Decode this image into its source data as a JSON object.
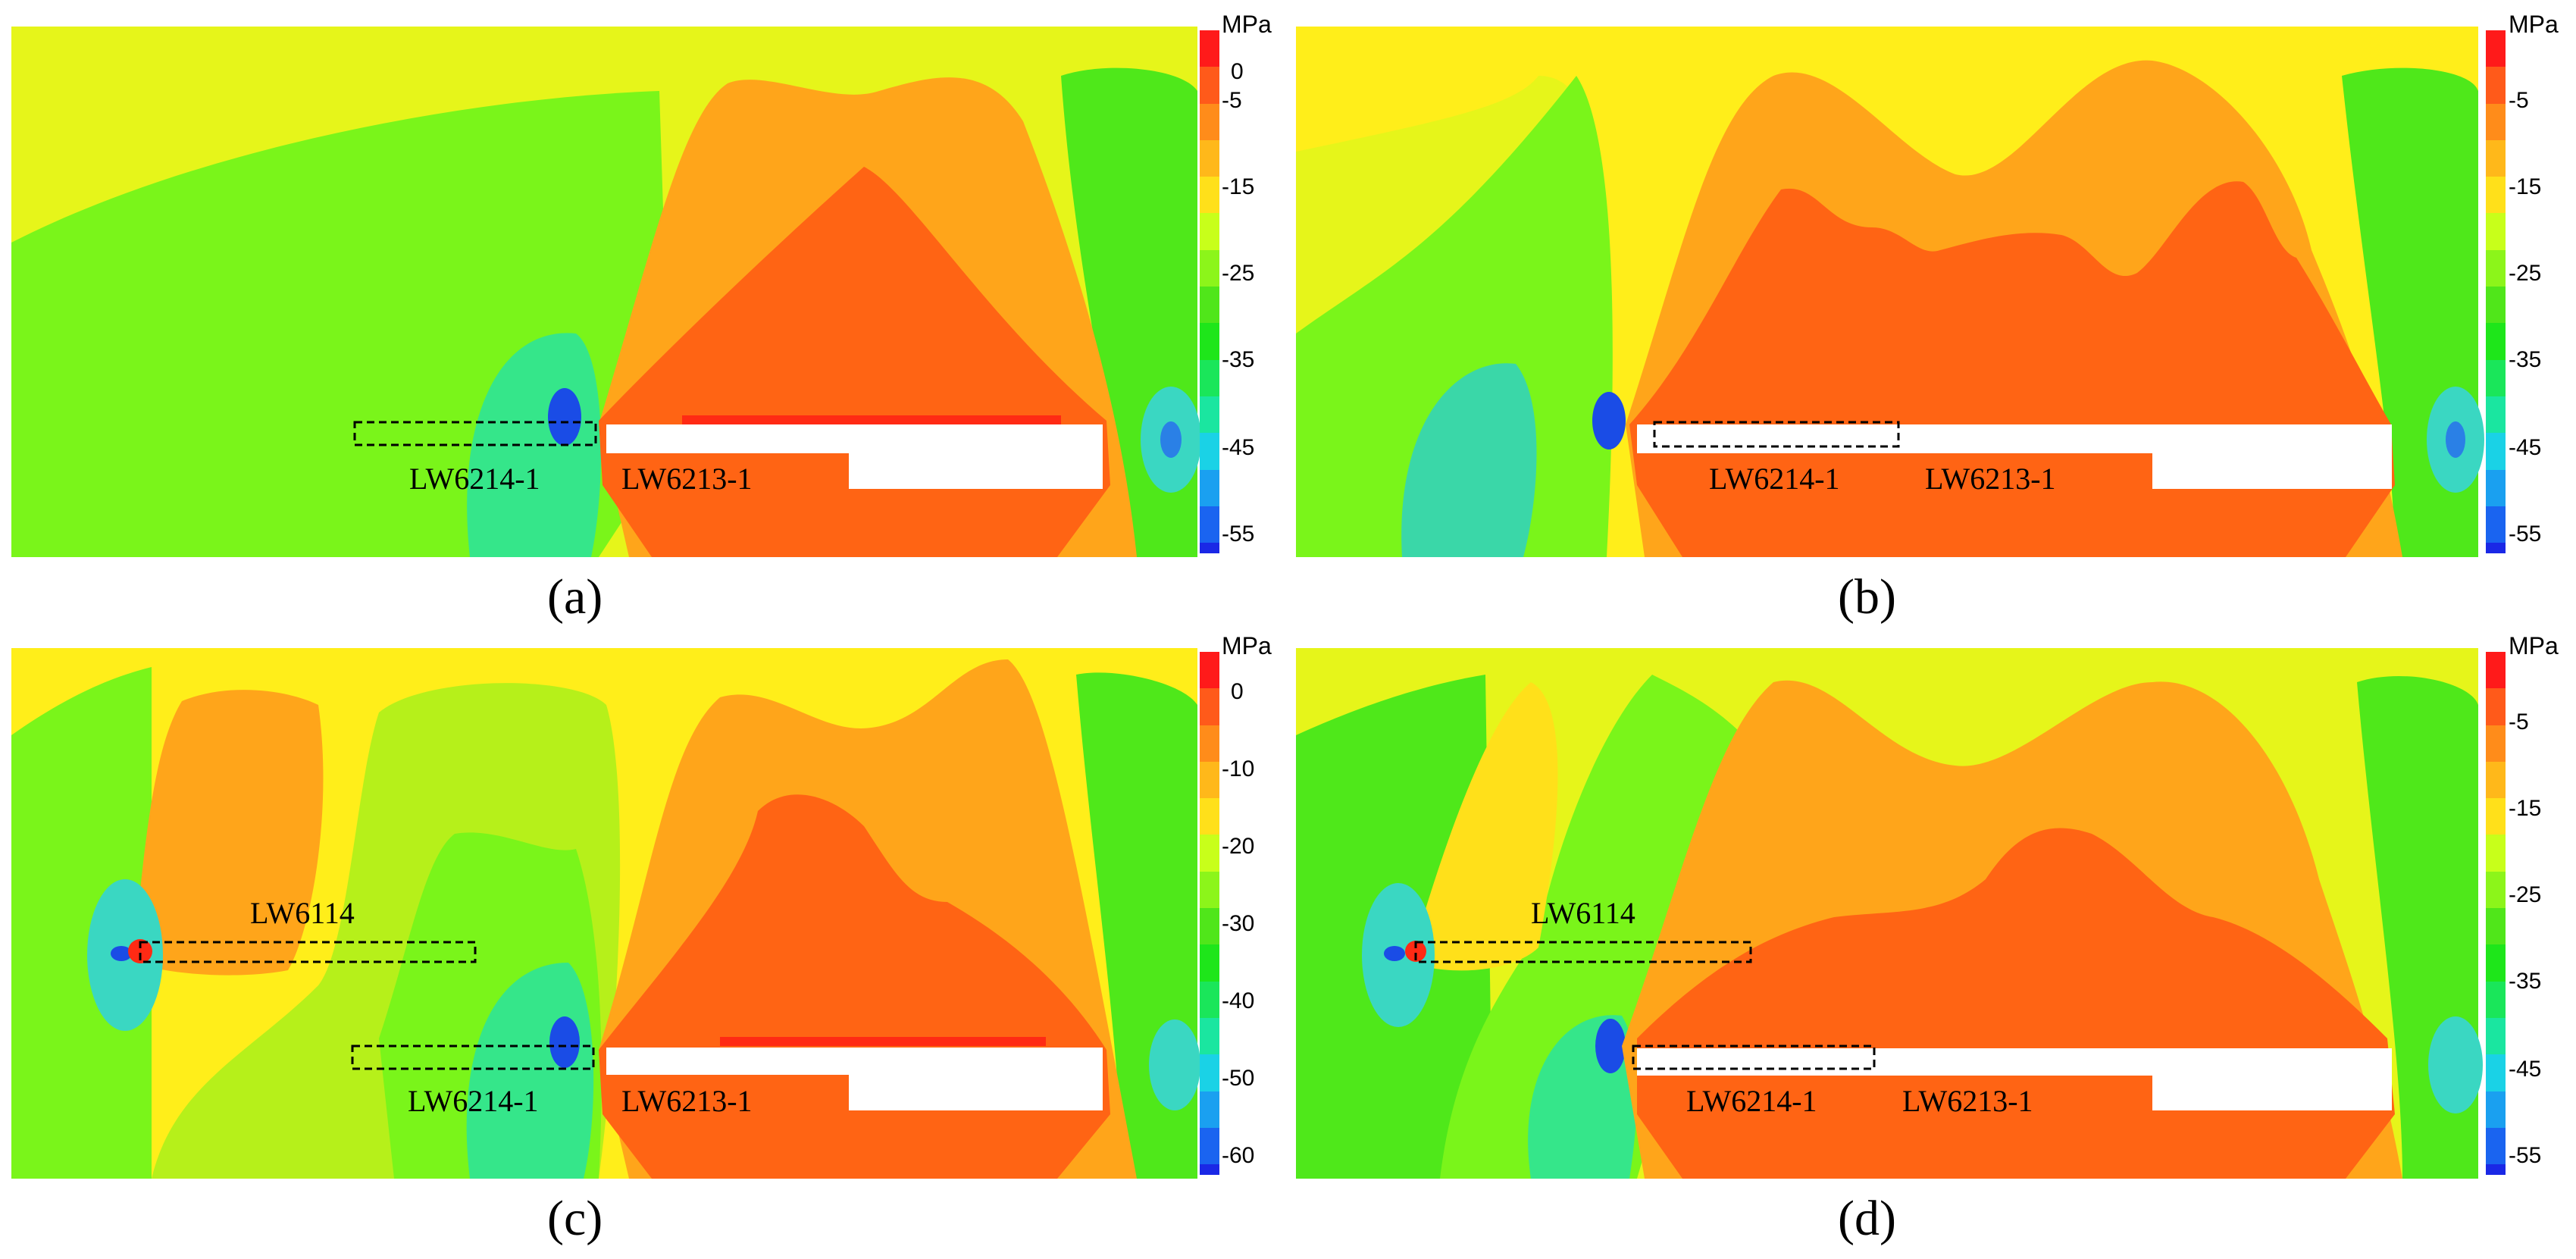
{
  "figure": {
    "panels": [
      {
        "id": "a",
        "caption": "(a)",
        "labels": {
          "left_panel": "LW6214-1",
          "right_panel": "LW6213-1"
        },
        "colorbar": {
          "unit": "MPa",
          "ticks": [
            "0",
            "-5",
            "-15",
            "-25",
            "-35",
            "-45",
            "-55"
          ],
          "colors": [
            "#ff1a1a",
            "#ff5a1a",
            "#ff8c1a",
            "#ffb81a",
            "#ffe01a",
            "#c8ff1a",
            "#8cf51a",
            "#50e61a",
            "#1ee61a",
            "#1ae65a",
            "#1ae6a0",
            "#1ad2e6",
            "#1aa0f0",
            "#1a64f0",
            "#1a28e6"
          ]
        }
      },
      {
        "id": "b",
        "caption": "(b)",
        "labels": {
          "left_panel": "LW6214-1",
          "right_panel": "LW6213-1"
        },
        "colorbar": {
          "unit": "MPa",
          "ticks": [
            "-5",
            "-15",
            "-25",
            "-35",
            "-45",
            "-55"
          ],
          "colors": [
            "#ff1a1a",
            "#ff5a1a",
            "#ff8c1a",
            "#ffb81a",
            "#ffe01a",
            "#c8ff1a",
            "#8cf51a",
            "#50e61a",
            "#1ee61a",
            "#1ae65a",
            "#1ae6a0",
            "#1ad2e6",
            "#1aa0f0",
            "#1a64f0",
            "#1a28e6"
          ]
        }
      },
      {
        "id": "c",
        "caption": "(c)",
        "labels": {
          "upper": "LW6114",
          "left_panel": "LW6214-1",
          "right_panel": "LW6213-1"
        },
        "colorbar": {
          "unit": "MPa",
          "ticks": [
            "0",
            "-10",
            "-20",
            "-30",
            "-40",
            "-50",
            "-60"
          ],
          "colors": [
            "#ff1a1a",
            "#ff5a1a",
            "#ff8c1a",
            "#ffb81a",
            "#ffe01a",
            "#c8ff1a",
            "#8cf51a",
            "#50e61a",
            "#1ee61a",
            "#1ae65a",
            "#1ae6a0",
            "#1ad2e6",
            "#1aa0f0",
            "#1a64f0",
            "#1a28e6"
          ]
        }
      },
      {
        "id": "d",
        "caption": "(d)",
        "labels": {
          "upper": "LW6114",
          "left_panel": "LW6214-1",
          "right_panel": "LW6213-1"
        },
        "colorbar": {
          "unit": "MPa",
          "ticks": [
            "-5",
            "-15",
            "-25",
            "-35",
            "-45",
            "-55"
          ],
          "colors": [
            "#ff1a1a",
            "#ff5a1a",
            "#ff8c1a",
            "#ffb81a",
            "#ffe01a",
            "#c8ff1a",
            "#8cf51a",
            "#50e61a",
            "#1ee61a",
            "#1ae65a",
            "#1ae6a0",
            "#1ad2e6",
            "#1aa0f0",
            "#1a64f0",
            "#1a28e6"
          ]
        }
      }
    ]
  },
  "palette": {
    "background_yellow": "#e6f51a",
    "yellow": "#ffee1a",
    "green": "#7af51a",
    "bright_green": "#2ee61a",
    "orange": "#ffa51a",
    "dark_orange": "#ff6414",
    "red": "#ff2a14",
    "cyan": "#1ad2c8",
    "blue": "#1a3ce6",
    "void": "#ffffff"
  }
}
